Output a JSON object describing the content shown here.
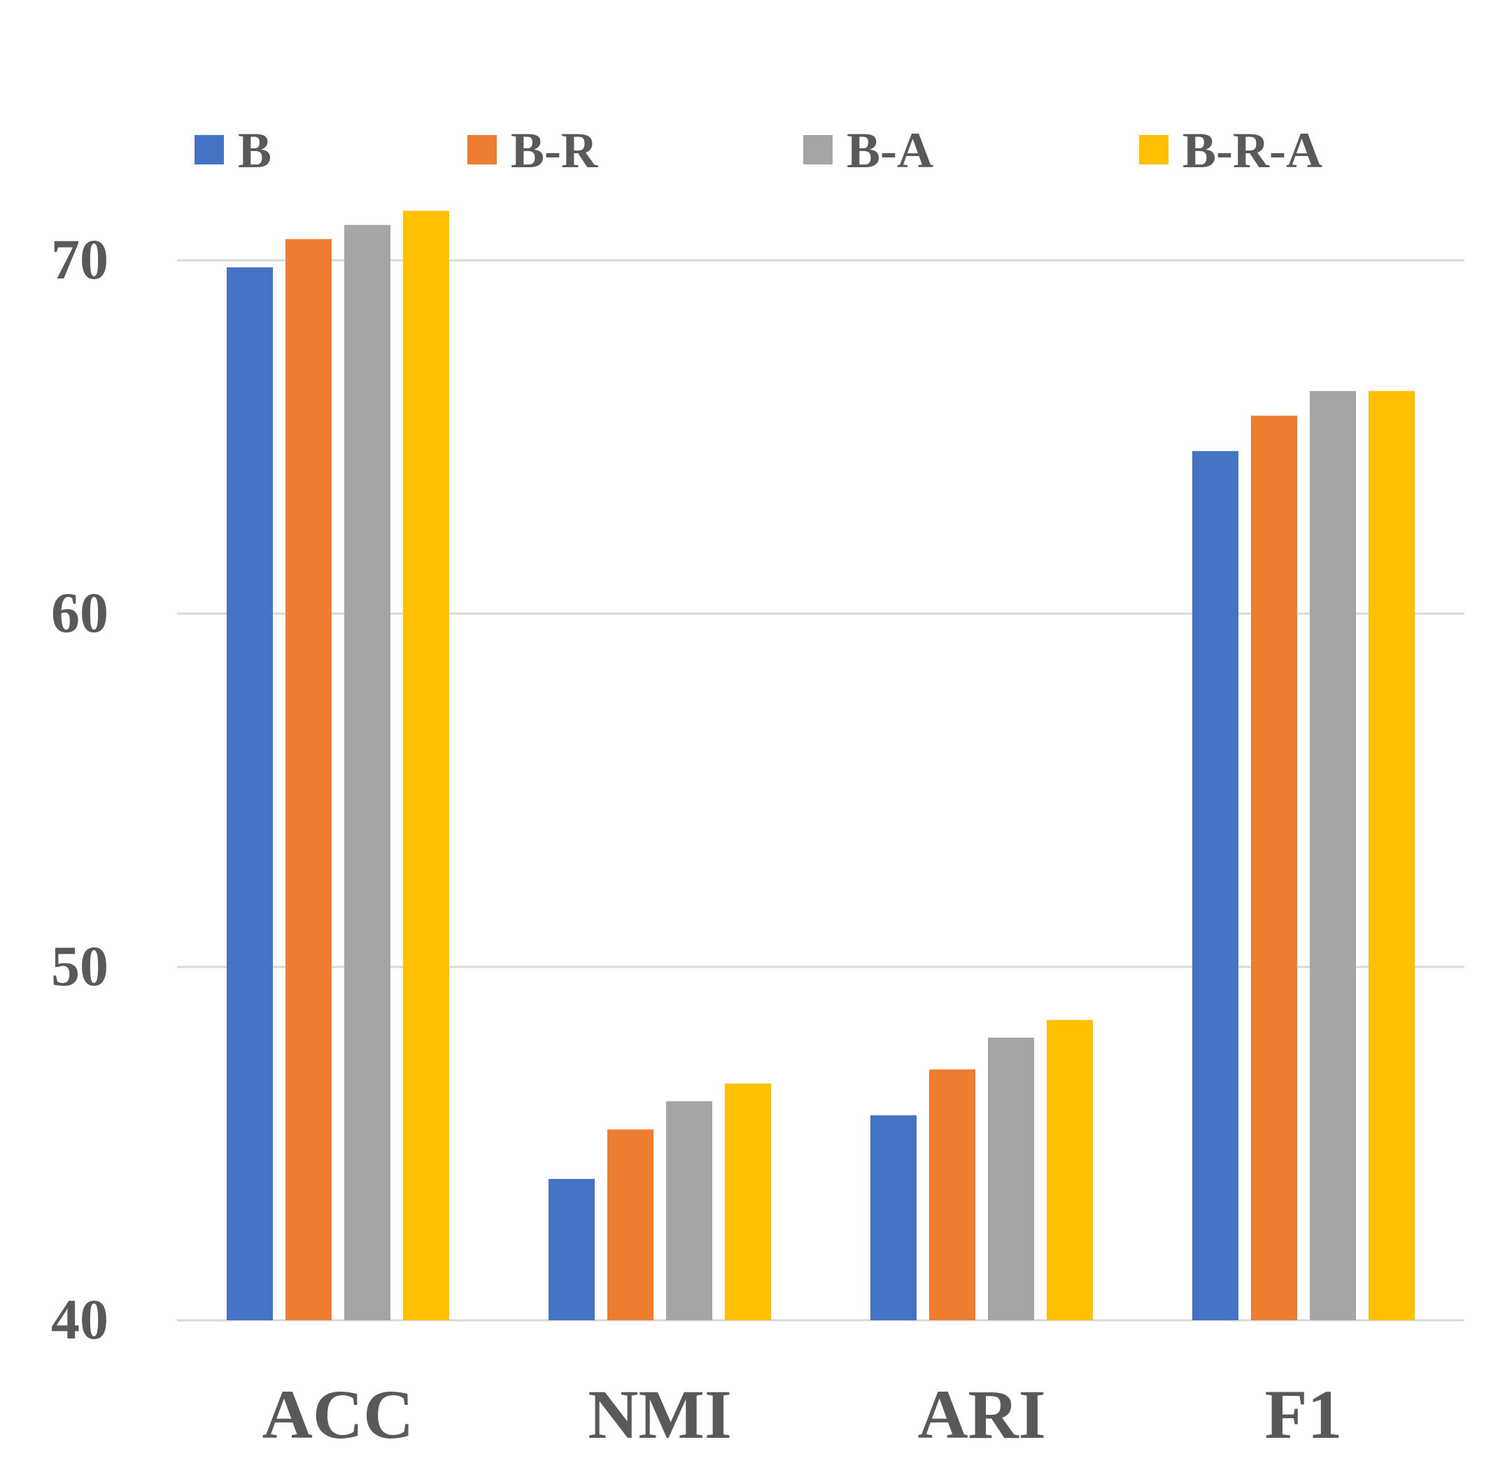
{
  "chart_data": {
    "type": "bar",
    "title": "",
    "xlabel": "",
    "ylabel": "",
    "categories": [
      "ACC",
      "NMI",
      "ARI",
      "F1"
    ],
    "ylim": [
      40,
      70
    ],
    "yticks": [
      "40",
      "50",
      "60",
      "70"
    ],
    "grid": true,
    "legend_position": "top",
    "series": [
      {
        "name": "B",
        "color": "#4472C4",
        "values": [
          69.8,
          44.0,
          45.8,
          64.6
        ]
      },
      {
        "name": "B-R",
        "color": "#ED7D31",
        "values": [
          70.6,
          45.4,
          47.1,
          65.6
        ]
      },
      {
        "name": "B-A",
        "color": "#A5A5A5",
        "values": [
          71.0,
          46.2,
          48.0,
          66.3
        ]
      },
      {
        "name": "B-R-A",
        "color": "#FFC000",
        "values": [
          71.4,
          46.7,
          48.5,
          66.3
        ]
      }
    ],
    "colors": {
      "text": "#595959",
      "grid": "#D9D9D9"
    }
  }
}
